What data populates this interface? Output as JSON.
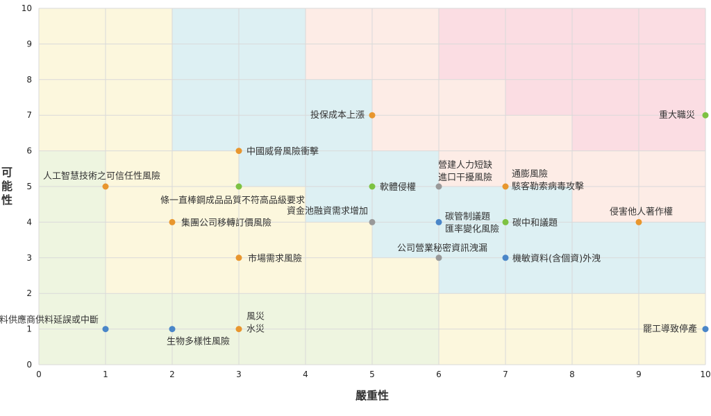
{
  "chart_data": {
    "type": "scatter",
    "title": "",
    "xlabel": "嚴重性",
    "ylabel": "可能性",
    "xlim": [
      0,
      10
    ],
    "ylim": [
      0,
      10
    ],
    "xticks": [
      "0",
      "1",
      "2",
      "3",
      "4",
      "5",
      "6",
      "7",
      "8",
      "9",
      "10"
    ],
    "yticks": [
      "0",
      "1",
      "2",
      "3",
      "4",
      "5",
      "6",
      "7",
      "8",
      "9",
      "10"
    ],
    "grid": true,
    "colors": {
      "orange": "#e8962e",
      "green": "#7dc242",
      "gray": "#999999",
      "blue": "#4a86c8",
      "zone_yellow": "#fcf7dd",
      "zone_green": "#eef5e0",
      "zone_blue": "#ddf0f3",
      "zone_peach": "#fdece6",
      "zone_red": "#fbdde3"
    },
    "points": [
      {
        "x": 1,
        "y": 1,
        "color": "blue",
        "label": [
          "原料供應商供料延誤或中斷"
        ]
      },
      {
        "x": 2,
        "y": 1,
        "color": "blue",
        "label": [
          "生物多樣性風險"
        ]
      },
      {
        "x": 3,
        "y": 1,
        "color": "orange",
        "label": [
          "風災",
          "水災"
        ]
      },
      {
        "x": 1,
        "y": 5,
        "color": "orange",
        "label": [
          "人工智慧技術之可信任性風險"
        ]
      },
      {
        "x": 2,
        "y": 4,
        "color": "orange",
        "label": [
          "集團公司移轉訂價風險"
        ]
      },
      {
        "x": 3,
        "y": 3,
        "color": "orange",
        "label": [
          "市場需求風險"
        ]
      },
      {
        "x": 3,
        "y": 5,
        "color": "green",
        "label": [
          "條一直棒鋼成品品質不符高品級要求"
        ]
      },
      {
        "x": 3,
        "y": 6,
        "color": "orange",
        "label": [
          "中國威脅風險衝擊"
        ]
      },
      {
        "x": 5,
        "y": 7,
        "color": "orange",
        "label": [
          "投保成本上漲"
        ]
      },
      {
        "x": 5,
        "y": 5,
        "color": "green",
        "label": [
          "軟體侵權"
        ]
      },
      {
        "x": 5,
        "y": 4,
        "color": "gray",
        "label": [
          "資金池融資需求增加"
        ]
      },
      {
        "x": 6,
        "y": 5,
        "color": "gray",
        "label": [
          "營建人力短缺",
          "進口干擾風險"
        ]
      },
      {
        "x": 6,
        "y": 4,
        "color": "blue",
        "label": [
          "碳管制議題",
          "匯率變化風險"
        ]
      },
      {
        "x": 6,
        "y": 3,
        "color": "gray",
        "label": [
          "公司營業秘密資訊洩漏"
        ]
      },
      {
        "x": 7,
        "y": 5,
        "color": "orange",
        "label": [
          "通膨風險",
          "駭客勒索病毒攻擊"
        ]
      },
      {
        "x": 7,
        "y": 4,
        "color": "green",
        "label": [
          "碳中和議題"
        ]
      },
      {
        "x": 7,
        "y": 3,
        "color": "blue",
        "label": [
          "機敏資料(含個資)外洩"
        ]
      },
      {
        "x": 9,
        "y": 4,
        "color": "orange",
        "label": [
          "侵害他人著作權"
        ]
      },
      {
        "x": 10,
        "y": 7,
        "color": "green",
        "label": [
          "重大職災"
        ]
      },
      {
        "x": 10,
        "y": 1,
        "color": "blue",
        "label": [
          "罷工導致停產"
        ]
      }
    ],
    "zones": [
      {
        "x0": 0,
        "y0": 0,
        "x1": 10,
        "y1": 10,
        "color": "zone_yellow"
      },
      {
        "x0": 0,
        "y0": 0,
        "x1": 6,
        "y1": 2,
        "color": "zone_green"
      },
      {
        "x0": 0,
        "y0": 2,
        "x1": 1,
        "y1": 6,
        "color": "zone_green"
      },
      {
        "x0": 2,
        "y0": 6,
        "x1": 4,
        "y1": 10,
        "color": "zone_blue"
      },
      {
        "x0": 3,
        "y0": 5,
        "x1": 4,
        "y1": 6,
        "color": "zone_blue"
      },
      {
        "x0": 4,
        "y0": 4,
        "x1": 5,
        "y1": 8,
        "color": "zone_blue"
      },
      {
        "x0": 5,
        "y0": 3,
        "x1": 6,
        "y1": 6,
        "color": "zone_blue"
      },
      {
        "x0": 6,
        "y0": 2,
        "x1": 8,
        "y1": 4,
        "color": "zone_blue"
      },
      {
        "x0": 8,
        "y0": 2,
        "x1": 10,
        "y1": 4,
        "color": "zone_blue"
      },
      {
        "x0": 6,
        "y0": 4,
        "x1": 8,
        "y1": 5,
        "color": "zone_blue"
      },
      {
        "x0": 4,
        "y0": 8,
        "x1": 6,
        "y1": 10,
        "color": "zone_peach"
      },
      {
        "x0": 5,
        "y0": 6,
        "x1": 7,
        "y1": 8,
        "color": "zone_peach"
      },
      {
        "x0": 6,
        "y0": 5,
        "x1": 10,
        "y1": 6,
        "color": "zone_peach"
      },
      {
        "x0": 7,
        "y0": 6,
        "x1": 8,
        "y1": 7,
        "color": "zone_peach"
      },
      {
        "x0": 8,
        "y0": 4,
        "x1": 10,
        "y1": 5,
        "color": "zone_peach"
      },
      {
        "x0": 6,
        "y0": 8,
        "x1": 10,
        "y1": 10,
        "color": "zone_red"
      },
      {
        "x0": 7,
        "y0": 7,
        "x1": 10,
        "y1": 8,
        "color": "zone_red"
      },
      {
        "x0": 8,
        "y0": 6,
        "x1": 10,
        "y1": 7,
        "color": "zone_red"
      }
    ]
  }
}
